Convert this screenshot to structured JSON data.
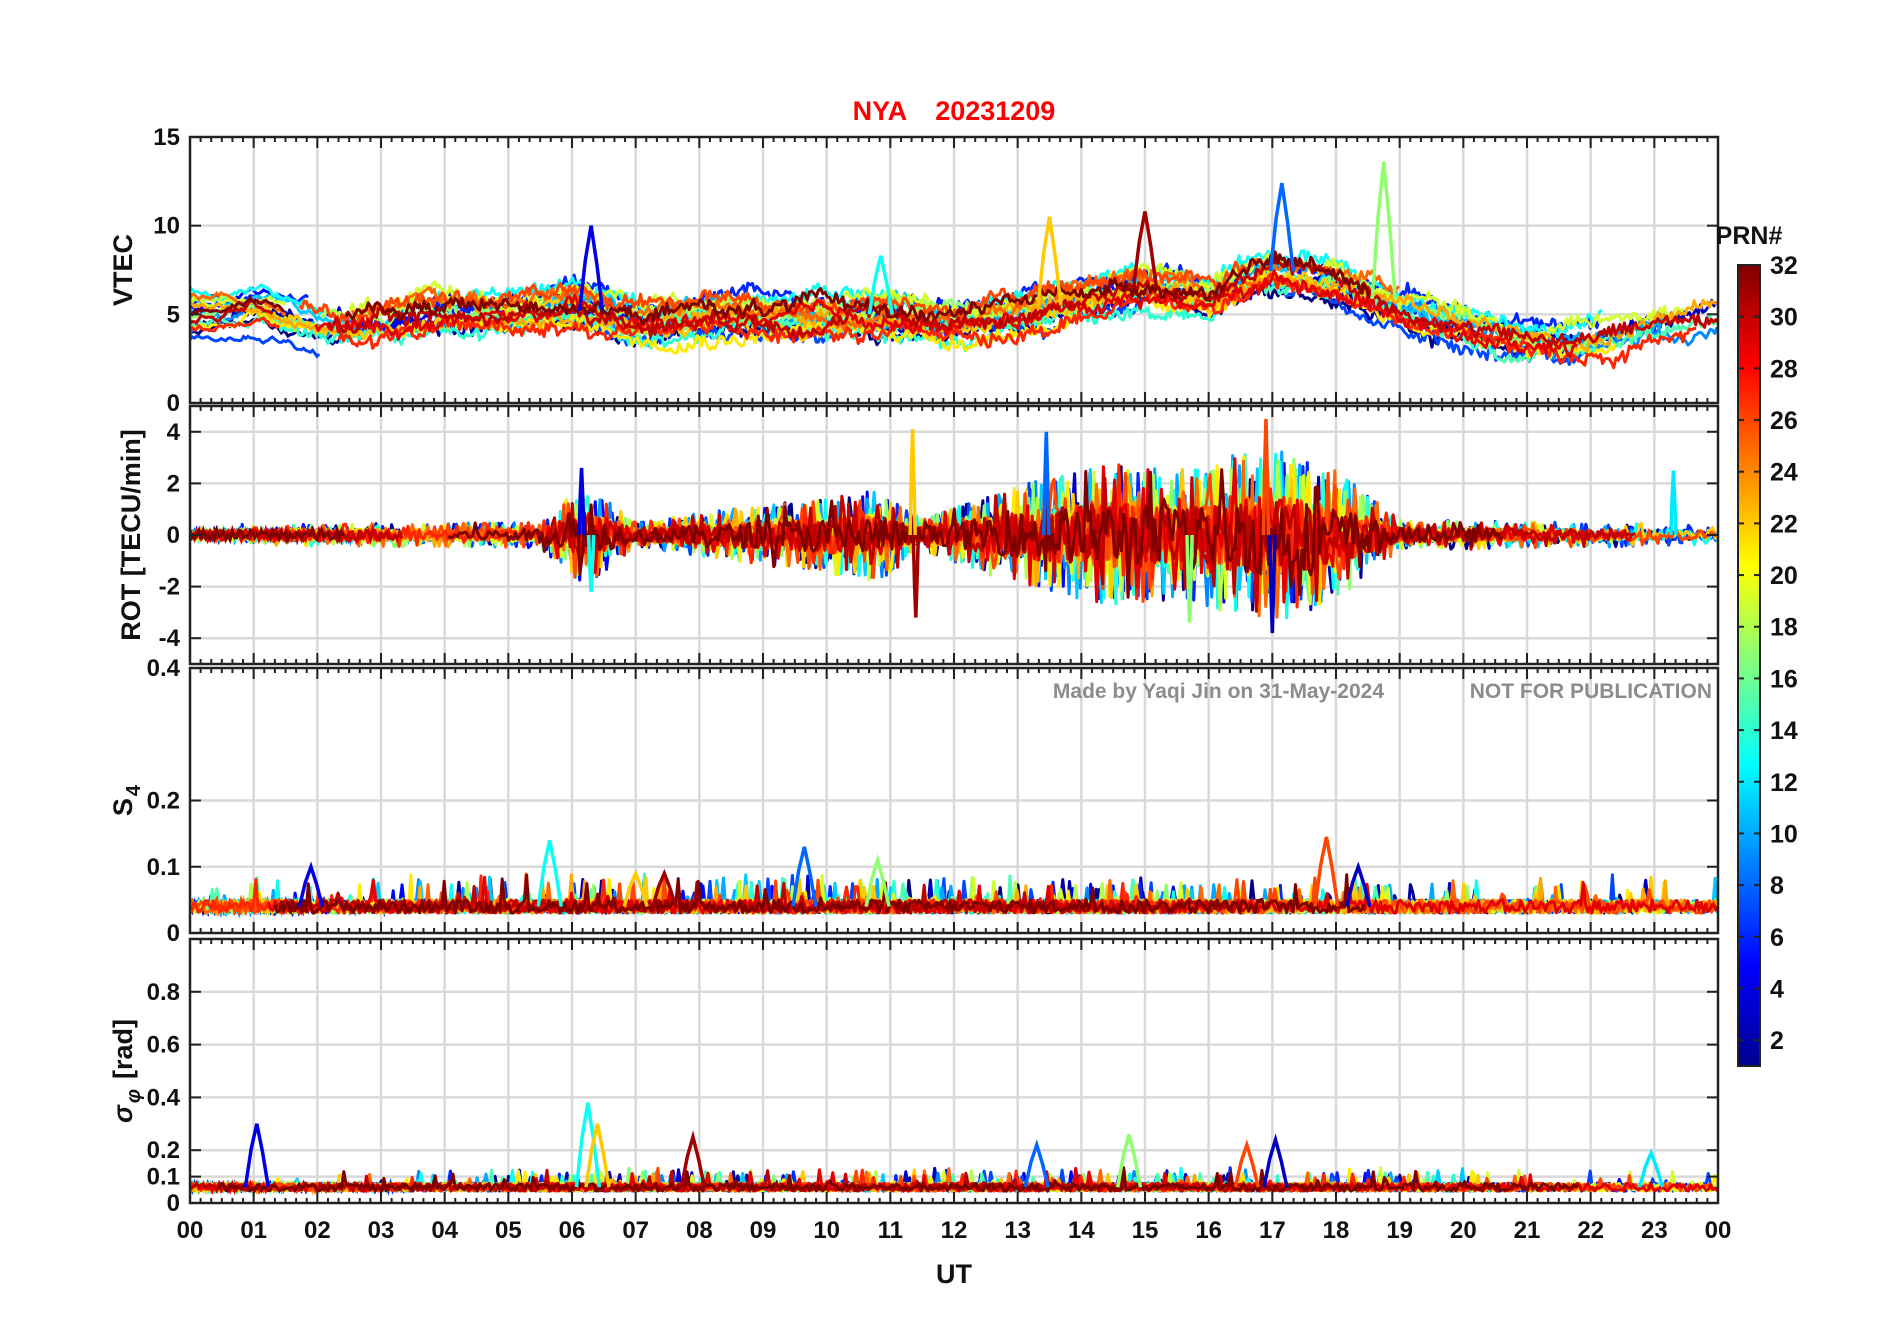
{
  "station": "NYA",
  "date": "20231209",
  "watermark_left": "Made by Yaqi Jin on 31-May-2024",
  "watermark_right": "NOT FOR PUBLICATION",
  "colors": {
    "title": "#ff0000",
    "watermark": "#8c8c8c",
    "grid": "#d9d9d9"
  },
  "chart_data": [
    {
      "type": "line",
      "panel": "vtec",
      "ylabel": "VTEC",
      "ylim": [
        0,
        15
      ],
      "yticks": [
        0,
        5,
        10,
        15
      ],
      "xlim": [
        0,
        24
      ],
      "series_style": "many colored lines, one per satellite PRN (1-32)",
      "activity": [
        {
          "hour": 0,
          "level": 5
        },
        {
          "hour": 1,
          "level": 5.5
        },
        {
          "hour": 2,
          "level": 4.5
        },
        {
          "hour": 3,
          "level": 4.5
        },
        {
          "hour": 4,
          "level": 5
        },
        {
          "hour": 5,
          "level": 5
        },
        {
          "hour": 6,
          "level": 5.5
        },
        {
          "hour": 7,
          "level": 4.5
        },
        {
          "hour": 8,
          "level": 5
        },
        {
          "hour": 9,
          "level": 5
        },
        {
          "hour": 10,
          "level": 5
        },
        {
          "hour": 11,
          "level": 5
        },
        {
          "hour": 12,
          "level": 4.5
        },
        {
          "hour": 13,
          "level": 5
        },
        {
          "hour": 14,
          "level": 6
        },
        {
          "hour": 15,
          "level": 6.5
        },
        {
          "hour": 16,
          "level": 6
        },
        {
          "hour": 17,
          "level": 7.5
        },
        {
          "hour": 18,
          "level": 7
        },
        {
          "hour": 19,
          "level": 5.5
        },
        {
          "hour": 20,
          "level": 4.5
        },
        {
          "hour": 21,
          "level": 3.5
        },
        {
          "hour": 22,
          "level": 3.5
        },
        {
          "hour": 23,
          "level": 4.5
        },
        {
          "hour": 24,
          "level": 5
        }
      ],
      "peaks": [
        {
          "hour": 6.3,
          "value": 10
        },
        {
          "hour": 10.85,
          "value": 8.3
        },
        {
          "hour": 13.5,
          "value": 10.5
        },
        {
          "hour": 15.0,
          "value": 10.8
        },
        {
          "hour": 17.15,
          "value": 12.4
        },
        {
          "hour": 18.75,
          "value": 13.6
        }
      ]
    },
    {
      "type": "line",
      "panel": "rot",
      "ylabel": "ROT [TECU/min]",
      "ylim": [
        -5,
        5
      ],
      "yticks": [
        -4,
        -2,
        0,
        2,
        4
      ],
      "xlim": [
        0,
        24
      ],
      "series_style": "many colored lines, one per satellite PRN (1-32)",
      "amplitude": [
        {
          "hour": 0,
          "amp": 0.4
        },
        {
          "hour": 5.5,
          "amp": 0.5
        },
        {
          "hour": 6.2,
          "amp": 2.0
        },
        {
          "hour": 7,
          "amp": 0.5
        },
        {
          "hour": 10.8,
          "amp": 1.8
        },
        {
          "hour": 11.5,
          "amp": 0.6
        },
        {
          "hour": 13.3,
          "amp": 2.2
        },
        {
          "hour": 14.5,
          "amp": 2.8
        },
        {
          "hour": 15.5,
          "amp": 2.5
        },
        {
          "hour": 17,
          "amp": 3.5
        },
        {
          "hour": 18,
          "amp": 2.5
        },
        {
          "hour": 19,
          "amp": 0.6
        },
        {
          "hour": 24,
          "amp": 0.4
        }
      ],
      "spikes": [
        {
          "hour": 6.15,
          "value": 2.6
        },
        {
          "hour": 6.3,
          "value": -2.2
        },
        {
          "hour": 11.35,
          "value": 4.1
        },
        {
          "hour": 11.4,
          "value": -3.2
        },
        {
          "hour": 13.45,
          "value": 4.0
        },
        {
          "hour": 15.7,
          "value": -3.4
        },
        {
          "hour": 16.9,
          "value": 4.5
        },
        {
          "hour": 17.0,
          "value": -3.8
        },
        {
          "hour": 23.3,
          "value": 2.5
        }
      ]
    },
    {
      "type": "line",
      "panel": "s4",
      "ylabel": "S",
      "ylabel_sub": "4",
      "ylim": [
        0,
        0.4
      ],
      "yticks": [
        0,
        0.1,
        0.2,
        0.4
      ],
      "xlim": [
        0,
        24
      ],
      "series_style": "many colored lines, one per satellite PRN (1-32)",
      "baseline": 0.04,
      "peaks": [
        {
          "hour": 1.9,
          "value": 0.1
        },
        {
          "hour": 5.65,
          "value": 0.14
        },
        {
          "hour": 7.0,
          "value": 0.09
        },
        {
          "hour": 7.45,
          "value": 0.09
        },
        {
          "hour": 9.65,
          "value": 0.13
        },
        {
          "hour": 10.8,
          "value": 0.11
        },
        {
          "hour": 17.85,
          "value": 0.145
        },
        {
          "hour": 18.35,
          "value": 0.1
        }
      ]
    },
    {
      "type": "line",
      "panel": "sigma_phi",
      "ylabel": "σ",
      "ylabel_sub": "φ",
      "ylabel_unit": "[rad]",
      "ylim": [
        0,
        1
      ],
      "yticks": [
        0,
        0.1,
        0.2,
        0.4,
        0.6,
        0.8
      ],
      "xlim": [
        0,
        24
      ],
      "xlabel": "UT",
      "xticks": [
        "00",
        "01",
        "02",
        "03",
        "04",
        "05",
        "06",
        "07",
        "08",
        "09",
        "10",
        "11",
        "12",
        "13",
        "14",
        "15",
        "16",
        "17",
        "18",
        "19",
        "20",
        "21",
        "22",
        "23",
        "00"
      ],
      "series_style": "many colored lines, one per satellite PRN (1-32)",
      "baseline": 0.06,
      "peaks": [
        {
          "hour": 1.05,
          "value": 0.3
        },
        {
          "hour": 6.25,
          "value": 0.38
        },
        {
          "hour": 6.4,
          "value": 0.3
        },
        {
          "hour": 7.9,
          "value": 0.25
        },
        {
          "hour": 13.3,
          "value": 0.22
        },
        {
          "hour": 14.75,
          "value": 0.26
        },
        {
          "hour": 16.6,
          "value": 0.22
        },
        {
          "hour": 17.05,
          "value": 0.24
        },
        {
          "hour": 22.95,
          "value": 0.19
        }
      ]
    },
    {
      "type": "heatmap",
      "panel": "colorbar",
      "label": "PRN#",
      "range": [
        1,
        32
      ],
      "ticks": [
        2,
        4,
        6,
        8,
        10,
        12,
        14,
        16,
        18,
        20,
        22,
        24,
        26,
        28,
        30,
        32
      ],
      "colormap": "jet"
    }
  ]
}
